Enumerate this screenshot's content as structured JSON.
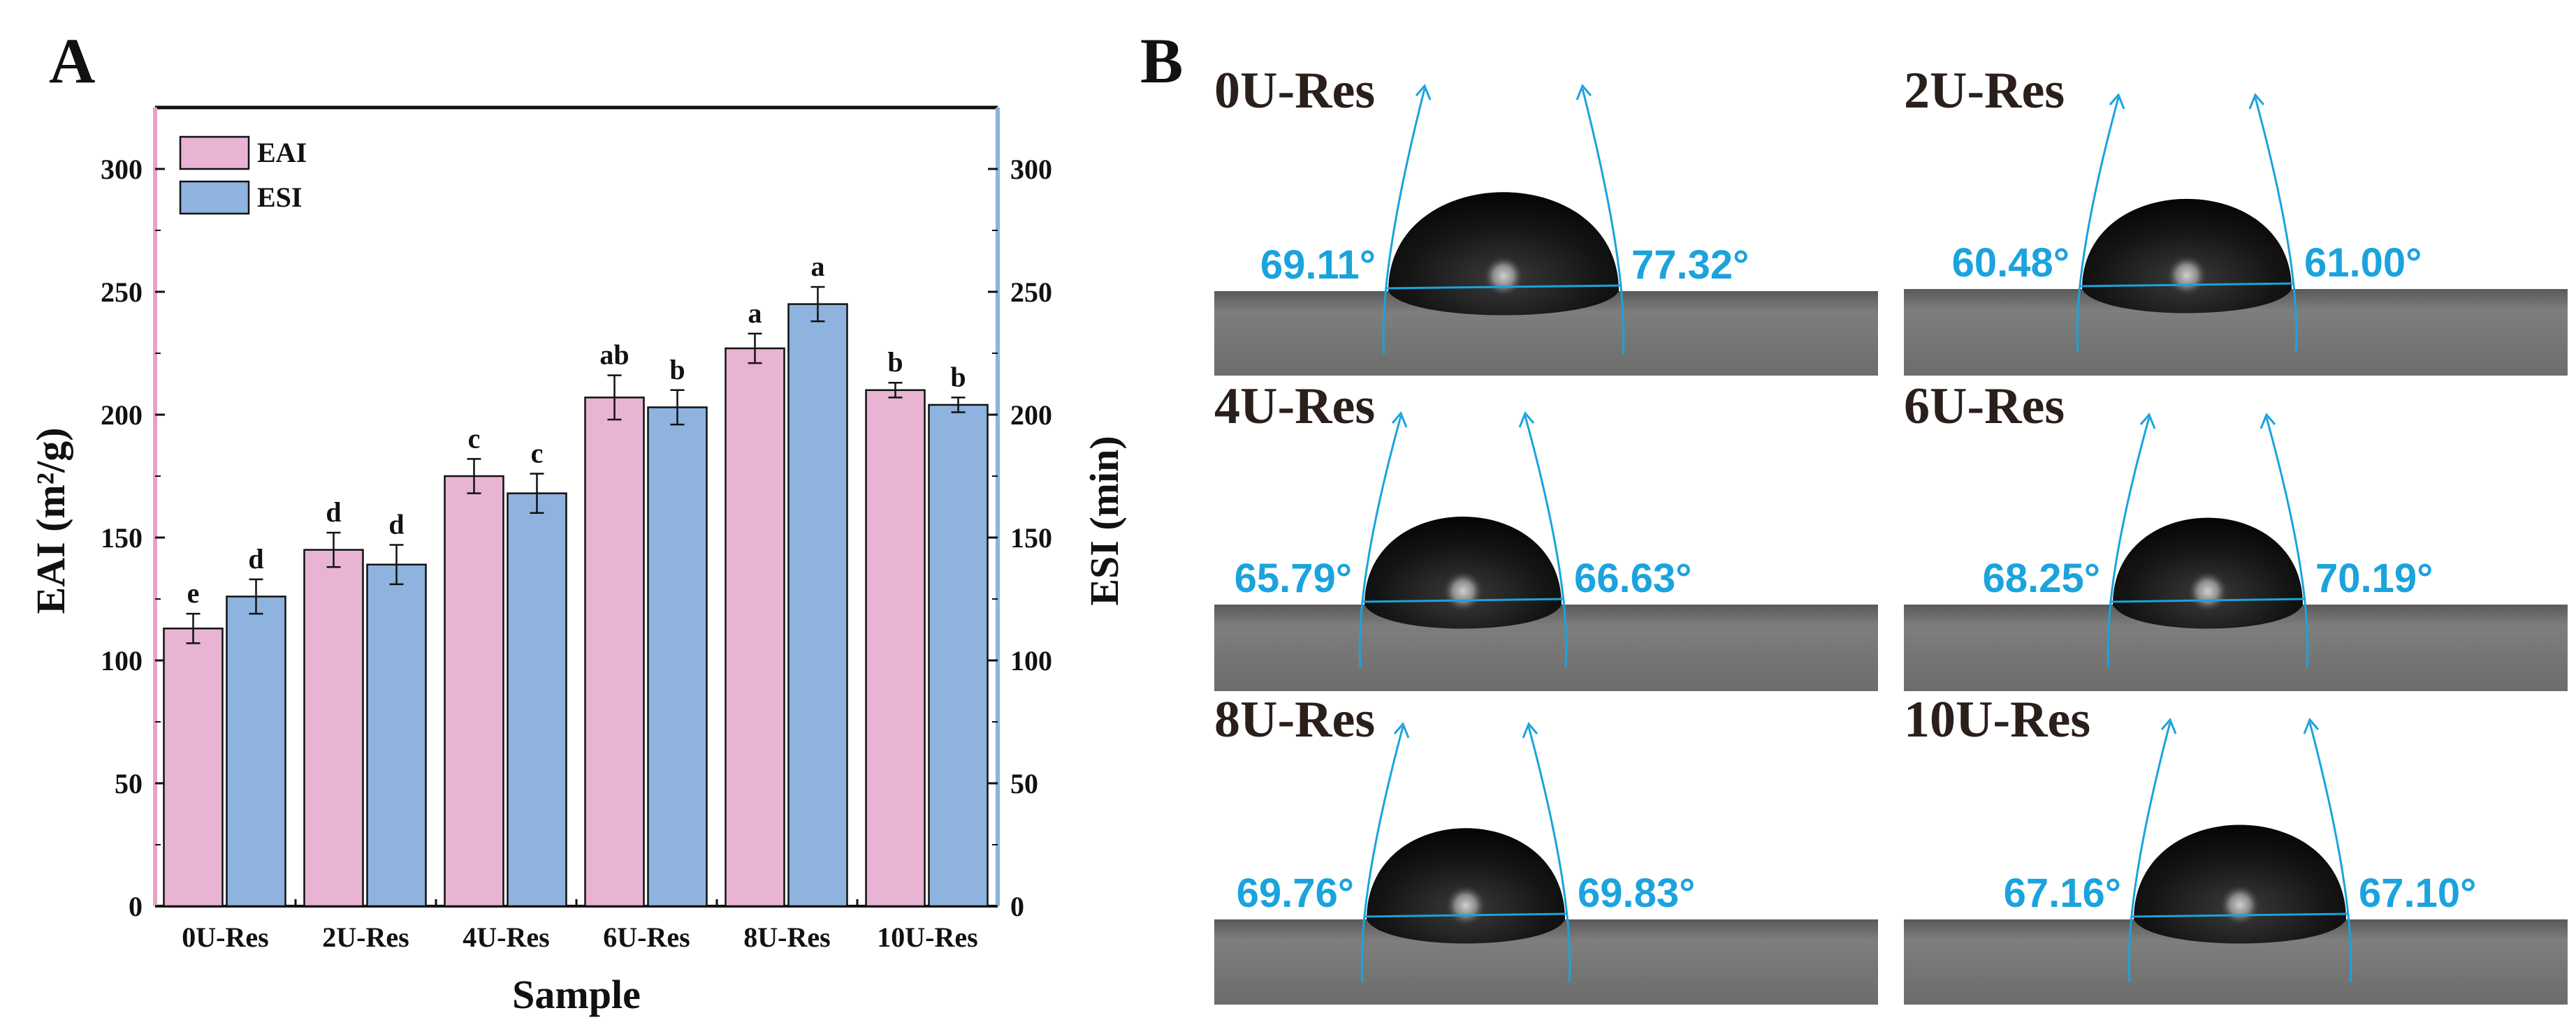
{
  "panel_a": {
    "letter": "A"
  },
  "panel_b": {
    "letter": "B"
  },
  "chart_data": {
    "type": "bar",
    "title": "",
    "xlabel": "Sample",
    "ylabel": "EAI (m²/g)",
    "ylabel_right": "ESI (min)",
    "categories": [
      "0U-Res",
      "2U-Res",
      "4U-Res",
      "6U-Res",
      "8U-Res",
      "10U-Res"
    ],
    "ylim": [
      0,
      325
    ],
    "ylim_right": [
      0,
      325
    ],
    "yticks": [
      0,
      50,
      100,
      150,
      200,
      250,
      300
    ],
    "legend_position": "top-left",
    "series": [
      {
        "name": "EAI",
        "axis": "left",
        "color": "#e9b3d3",
        "values": [
          113,
          145,
          175,
          207,
          227,
          210
        ],
        "errors": [
          6,
          7,
          7,
          9,
          6,
          3
        ],
        "letters": [
          "e",
          "d",
          "c",
          "ab",
          "a",
          "b"
        ]
      },
      {
        "name": "ESI",
        "axis": "right",
        "color": "#8db3de",
        "values": [
          126,
          139,
          168,
          203,
          245,
          204
        ],
        "errors": [
          7,
          8,
          8,
          7,
          7,
          3
        ],
        "letters": [
          "d",
          "d",
          "c",
          "b",
          "a",
          "b"
        ]
      }
    ]
  },
  "droplets": [
    {
      "title": "0U-Res",
      "left_angle": "69.11°",
      "right_angle": "77.32°"
    },
    {
      "title": "2U-Res",
      "left_angle": "60.48°",
      "right_angle": "61.00°"
    },
    {
      "title": "4U-Res",
      "left_angle": "65.79°",
      "right_angle": "66.63°"
    },
    {
      "title": "6U-Res",
      "left_angle": "68.25°",
      "right_angle": "70.19°"
    },
    {
      "title": "8U-Res",
      "left_angle": "69.76°",
      "right_angle": "69.83°"
    },
    {
      "title": "10U-Res",
      "left_angle": "67.16°",
      "right_angle": "67.10°"
    }
  ],
  "colors": {
    "eai_axis": "#e9a2c6",
    "esi_axis": "#8db3de",
    "angle": "#1ba3dd"
  }
}
